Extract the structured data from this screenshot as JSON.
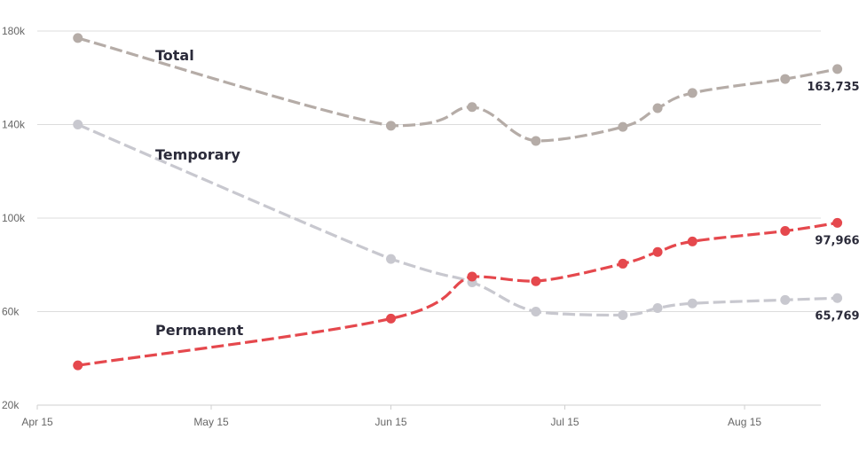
{
  "chart_data": {
    "type": "line",
    "title": "",
    "xlabel": "",
    "ylabel": "",
    "x_ticks": [
      "Apr 15",
      "May 15",
      "Jun 15",
      "Jul 15",
      "Aug 15"
    ],
    "y_ticks": [
      "20k",
      "60k",
      "100k",
      "140k",
      "180k"
    ],
    "ylim": [
      20000,
      180000
    ],
    "grid": true,
    "x": [
      "2021-04-22",
      "2021-06-15",
      "2021-06-29",
      "2021-07-10",
      "2021-07-25",
      "2021-07-31",
      "2021-08-06",
      "2021-08-22",
      "2021-08-31"
    ],
    "series": [
      {
        "name": "Total",
        "color": "#b5aca7",
        "values": [
          177000,
          139500,
          147500,
          133000,
          139000,
          147000,
          153500,
          159500,
          163735
        ],
        "end_label": "163,735"
      },
      {
        "name": "Temporary",
        "color": "#c8c8cf",
        "values": [
          140000,
          82500,
          72500,
          60000,
          58500,
          61500,
          63500,
          65000,
          65769
        ],
        "end_label": "65,769"
      },
      {
        "name": "Permanent",
        "color": "#e5484d",
        "values": [
          37000,
          57000,
          75000,
          73000,
          80500,
          85500,
          90000,
          94500,
          97966
        ],
        "end_label": "97,966"
      }
    ]
  }
}
